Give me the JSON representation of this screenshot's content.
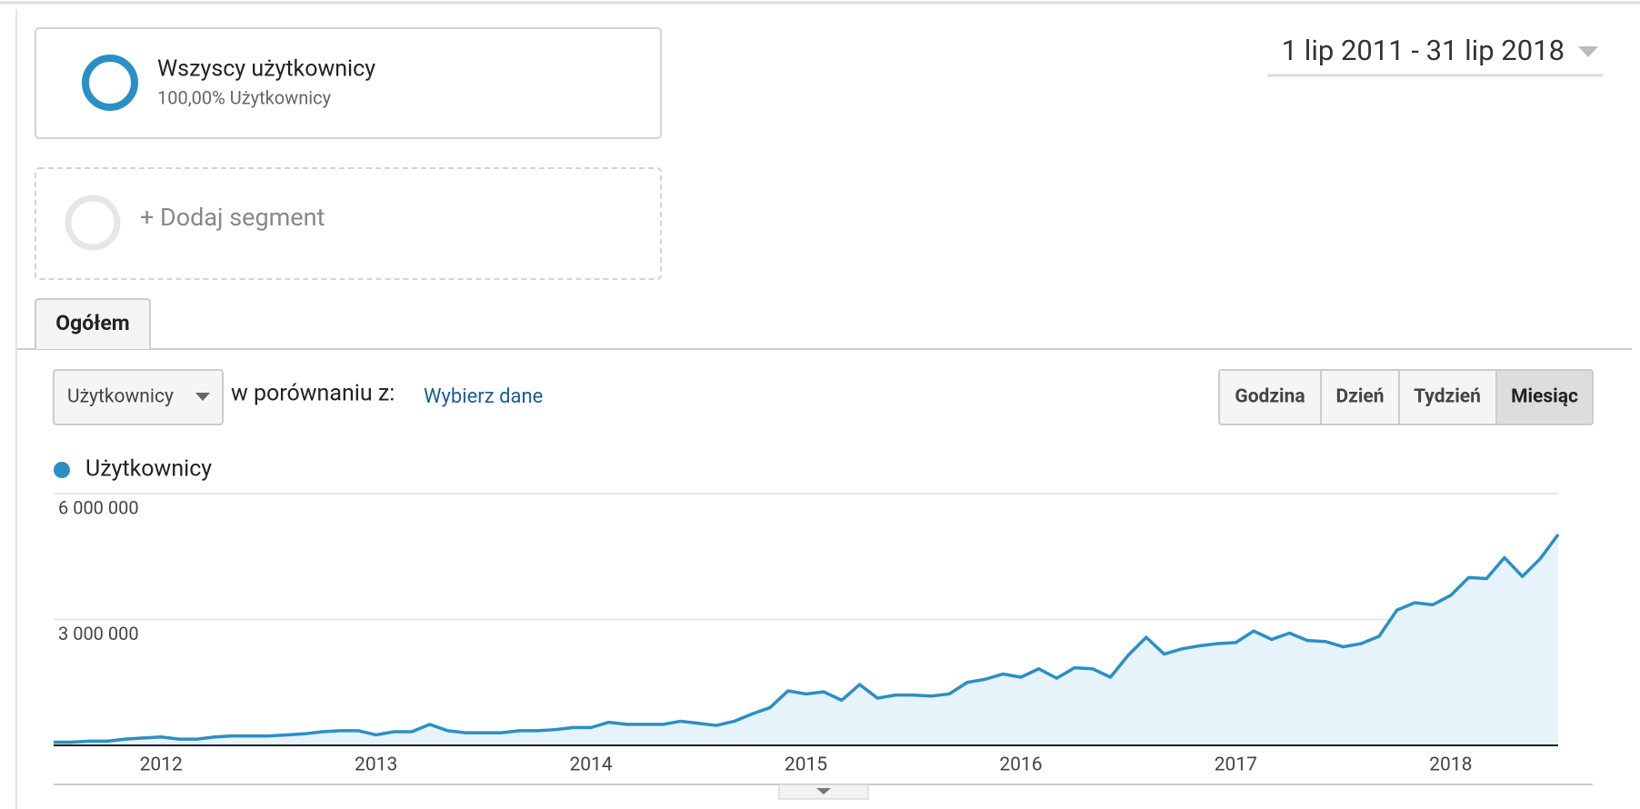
{
  "segments": [
    {
      "title": "Wszyscy użytkownicy",
      "subtitle": "100,00% Użytkownicy"
    },
    {
      "title": "+ Dodaj segment"
    }
  ],
  "date_range": "1 lip 2011 - 31 lip 2018",
  "tab": "Ogółem",
  "metric_select": "Użytkownicy",
  "compare_label": "w porównaniu z:",
  "compare_link": "Wybierz dane",
  "granularity": [
    "Godzina",
    "Dzień",
    "Tydzień",
    "Miesiąc"
  ],
  "chart_data": {
    "type": "line",
    "categories": [
      null,
      null,
      null,
      null,
      null,
      null,
      "2012",
      null,
      null,
      null,
      null,
      null,
      null,
      null,
      null,
      null,
      null,
      null,
      "2013",
      null,
      null,
      null,
      null,
      null,
      null,
      null,
      null,
      null,
      null,
      null,
      "2014",
      null,
      null,
      null,
      null,
      null,
      null,
      null,
      null,
      null,
      null,
      null,
      "2015",
      null,
      null,
      null,
      null,
      null,
      null,
      null,
      null,
      null,
      null,
      null,
      "2016",
      null,
      null,
      null,
      null,
      null,
      null,
      null,
      null,
      null,
      null,
      null,
      "2017",
      null,
      null,
      null,
      null,
      null,
      null,
      null,
      null,
      null,
      null,
      null,
      "2018",
      null,
      null,
      null,
      null,
      null,
      null
    ],
    "series": [
      {
        "name": "Użytkownicy",
        "color": "#2b8fc6",
        "values": [
          75000,
          75000,
          100000,
          100000,
          150000,
          175000,
          200000,
          150000,
          150000,
          200000,
          225000,
          225000,
          225000,
          250000,
          275000,
          325000,
          350000,
          350000,
          250000,
          325000,
          325000,
          500000,
          350000,
          300000,
          300000,
          300000,
          350000,
          350000,
          375000,
          425000,
          425000,
          550000,
          500000,
          500000,
          500000,
          575000,
          525000,
          475000,
          575000,
          750000,
          900000,
          1300000,
          1225000,
          1275000,
          1075000,
          1450000,
          1125000,
          1200000,
          1200000,
          1175000,
          1225000,
          1500000,
          1575000,
          1700000,
          1625000,
          1825000,
          1600000,
          1850000,
          1825000,
          1625000,
          2150000,
          2575000,
          2175000,
          2300000,
          2375000,
          2425000,
          2450000,
          2725000,
          2525000,
          2675000,
          2500000,
          2475000,
          2350000,
          2425000,
          2600000,
          3225000,
          3400000,
          3350000,
          3575000,
          4000000,
          3975000,
          4475000,
          4025000,
          4450000,
          5025000
        ]
      }
    ],
    "ylim": [
      0,
      6000000
    ],
    "yticks": [
      {
        "value": 3000000,
        "label": "3 000 000"
      },
      {
        "value": 6000000,
        "label": "6 000 000"
      }
    ],
    "grid": true
  }
}
